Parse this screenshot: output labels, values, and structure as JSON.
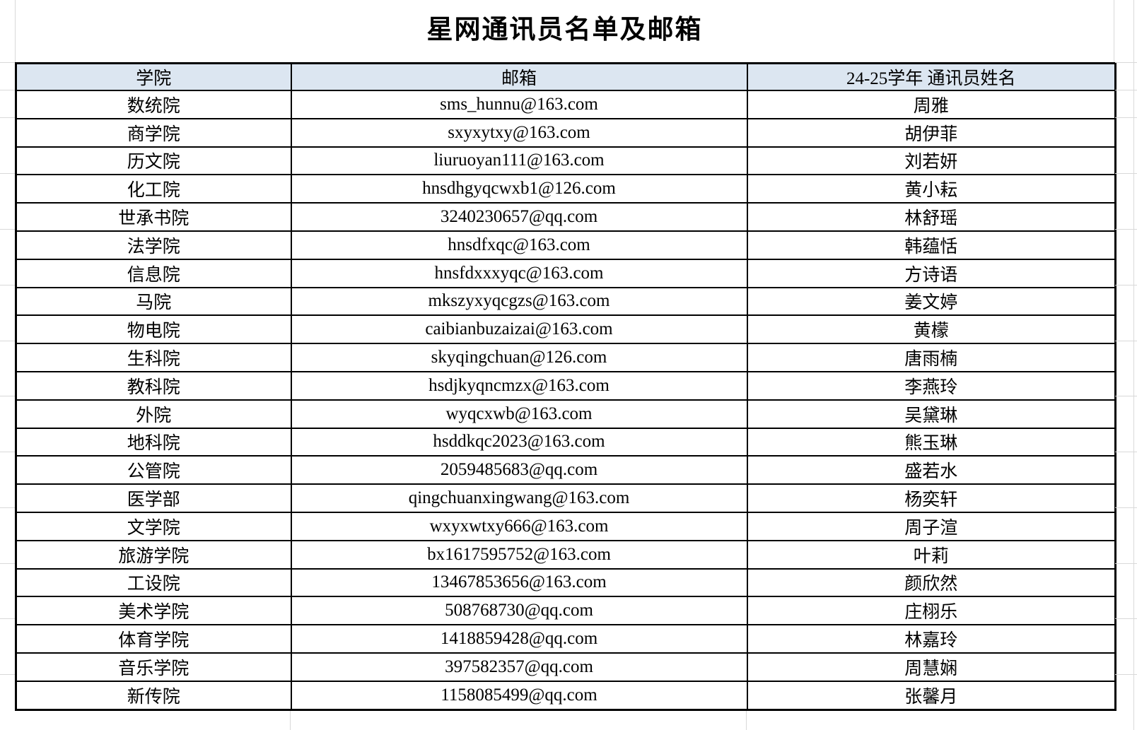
{
  "title": "星网通讯员名单及邮箱",
  "table": {
    "headers": [
      "学院",
      "邮箱",
      "24-25学年 通讯员姓名"
    ],
    "rows": [
      [
        "数统院",
        "sms_hunnu@163.com",
        "周雅"
      ],
      [
        "商学院",
        "sxyxytxy@163.com",
        "胡伊菲"
      ],
      [
        "历文院",
        "liuruoyan111@163.com",
        "刘若妍"
      ],
      [
        "化工院",
        "hnsdhgyqcwxb1@126.com",
        "黄小耘"
      ],
      [
        "世承书院",
        "3240230657@qq.com",
        "林舒瑶"
      ],
      [
        "法学院",
        "hnsdfxqc@163.com",
        "韩蕴恬"
      ],
      [
        "信息院",
        "hnsfdxxxyqc@163.com",
        "方诗语"
      ],
      [
        "马院",
        "mkszyxyqcgzs@163.com",
        "姜文婷"
      ],
      [
        "物电院",
        "caibianbuzaizai@163.com",
        "黄檬"
      ],
      [
        "生科院",
        "skyqingchuan@126.com",
        "唐雨楠"
      ],
      [
        "教科院",
        "hsdjkyqncmzx@163.com",
        "李燕玲"
      ],
      [
        "外院",
        "wyqcxwb@163.com",
        "吴黛琳"
      ],
      [
        "地科院",
        "hsddkqc2023@163.com",
        "熊玉琳"
      ],
      [
        "公管院",
        "2059485683@qq.com",
        "盛若水"
      ],
      [
        "医学部",
        "qingchuanxingwang@163.com",
        "杨奕轩"
      ],
      [
        "文学院",
        "wxyxwtxy666@163.com",
        "周子渲"
      ],
      [
        "旅游学院",
        "bx1617595752@163.com",
        "叶莉"
      ],
      [
        "工设院",
        "13467853656@163.com",
        "颜欣然"
      ],
      [
        "美术学院",
        "508768730@qq.com",
        "庄栩乐"
      ],
      [
        "体育学院",
        "1418859428@qq.com",
        "林嘉玲"
      ],
      [
        "音乐学院",
        "397582357@qq.com",
        "周慧娴"
      ],
      [
        "新传院",
        "1158085499@qq.com",
        "张馨月"
      ]
    ]
  },
  "colors": {
    "header_bg": "#dce6f1",
    "border": "#000000",
    "gridline": "#d9d9d9"
  }
}
